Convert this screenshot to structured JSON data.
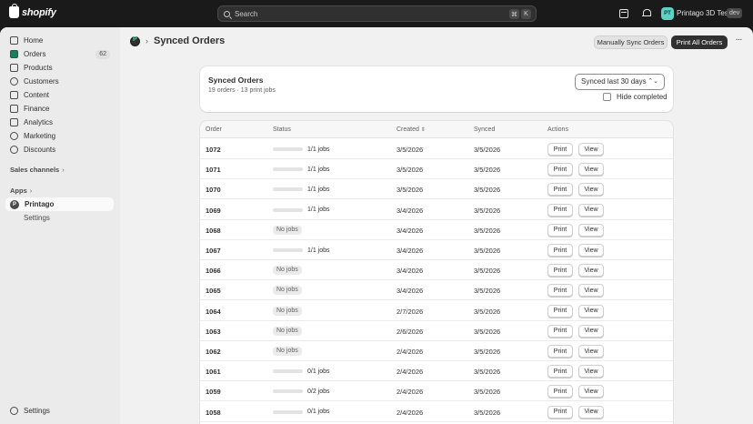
{
  "topbar": {
    "brand": "shopify",
    "search_placeholder": "Search",
    "shortcut_keys": [
      "⌘",
      "K"
    ],
    "store_initials": "PT",
    "store_name": "Printago 3D Test",
    "env_badge": "dev"
  },
  "sidebar": {
    "items": [
      {
        "label": "Home",
        "icon": "home-icon"
      },
      {
        "label": "Orders",
        "icon": "orders-icon",
        "count": "62"
      },
      {
        "label": "Products",
        "icon": "products-icon"
      },
      {
        "label": "Customers",
        "icon": "customers-icon"
      },
      {
        "label": "Content",
        "icon": "content-icon"
      },
      {
        "label": "Finance",
        "icon": "finance-icon"
      },
      {
        "label": "Analytics",
        "icon": "analytics-icon"
      },
      {
        "label": "Marketing",
        "icon": "marketing-icon"
      },
      {
        "label": "Discounts",
        "icon": "discounts-icon"
      }
    ],
    "sales_channels_label": "Sales channels",
    "apps_label": "Apps",
    "app_item": "Printago",
    "app_sub_item": "Settings",
    "footer_settings": "Settings"
  },
  "page": {
    "title": "Synced Orders",
    "manual_sync_label": "Manually Sync Orders",
    "print_all_label": "Print All Orders"
  },
  "summary": {
    "title": "Synced Orders",
    "subtitle": "19 orders · 13 print jobs",
    "range_selected": "Synced last 30 days",
    "hide_completed_label": "Hide completed",
    "hide_completed_checked": false
  },
  "table": {
    "headers": {
      "order": "Order",
      "status": "Status",
      "created": "Created",
      "synced": "Synced",
      "actions": "Actions"
    },
    "print_label": "Print",
    "view_label": "View",
    "rows": [
      {
        "order": "1072",
        "status": "1/1 jobs",
        "progress": 1,
        "created": "3/5/2026",
        "synced": "3/5/2026"
      },
      {
        "order": "1071",
        "status": "1/1 jobs",
        "progress": 1,
        "created": "3/5/2026",
        "synced": "3/5/2026"
      },
      {
        "order": "1070",
        "status": "1/1 jobs",
        "progress": 1,
        "created": "3/5/2026",
        "synced": "3/5/2026"
      },
      {
        "order": "1069",
        "status": "1/1 jobs",
        "progress": 1,
        "created": "3/4/2026",
        "synced": "3/5/2026"
      },
      {
        "order": "1068",
        "status": "No jobs",
        "progress": null,
        "created": "3/4/2026",
        "synced": "3/5/2026"
      },
      {
        "order": "1067",
        "status": "1/1 jobs",
        "progress": 1,
        "created": "3/4/2026",
        "synced": "3/5/2026"
      },
      {
        "order": "1066",
        "status": "No jobs",
        "progress": null,
        "created": "3/4/2026",
        "synced": "3/5/2026"
      },
      {
        "order": "1065",
        "status": "No jobs",
        "progress": null,
        "created": "3/4/2026",
        "synced": "3/5/2026"
      },
      {
        "order": "1064",
        "status": "No jobs",
        "progress": null,
        "created": "2/7/2026",
        "synced": "3/5/2026"
      },
      {
        "order": "1063",
        "status": "No jobs",
        "progress": null,
        "created": "2/6/2026",
        "synced": "3/5/2026"
      },
      {
        "order": "1062",
        "status": "No jobs",
        "progress": null,
        "created": "2/4/2026",
        "synced": "3/5/2026"
      },
      {
        "order": "1061",
        "status": "0/1 jobs",
        "progress": 0,
        "created": "2/4/2026",
        "synced": "3/5/2026"
      },
      {
        "order": "1059",
        "status": "0/2 jobs",
        "progress": 0,
        "created": "2/4/2026",
        "synced": "3/5/2026"
      },
      {
        "order": "1058",
        "status": "0/1 jobs",
        "progress": 0,
        "created": "2/4/2026",
        "synced": "3/5/2026"
      }
    ]
  },
  "colors": {
    "progress_fill": "#1a7f5a",
    "topbar_bg": "#1a1a1a",
    "primary_button": "#303030"
  }
}
